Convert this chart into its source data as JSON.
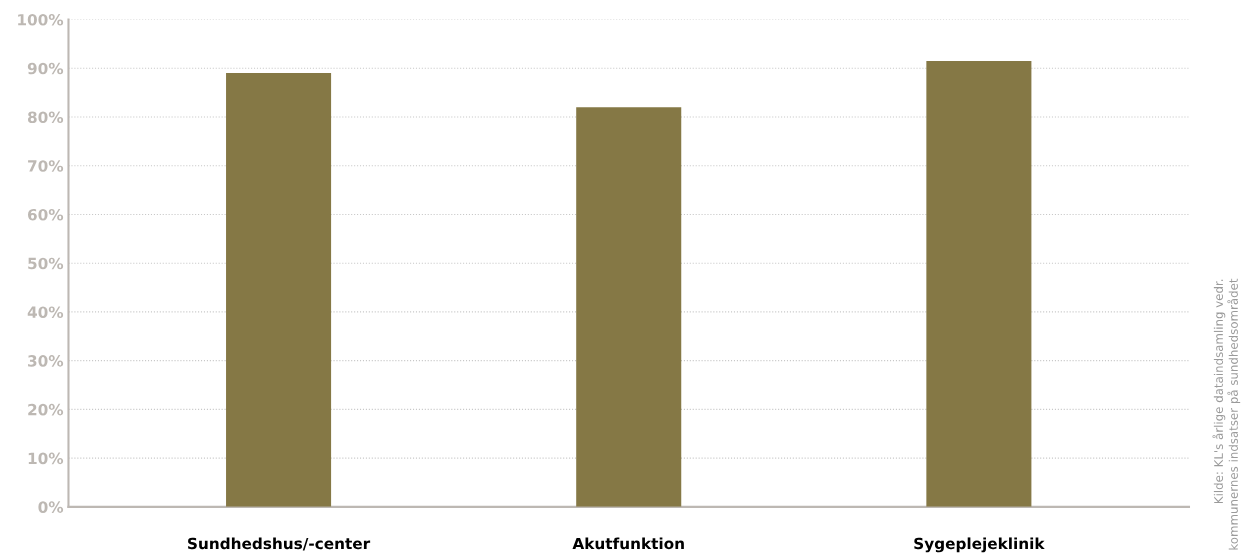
{
  "chart_data": {
    "type": "bar",
    "categories": [
      "Sundhedshus/-center",
      "Akutfunktion",
      "Sygeplejeklinik"
    ],
    "values": [
      89,
      82,
      91.5
    ],
    "color": "#857845",
    "ylim": [
      0,
      100
    ],
    "yticks": [
      {
        "value": 0,
        "label": "0%"
      },
      {
        "value": 10,
        "label": "10%"
      },
      {
        "value": 20,
        "label": "20%"
      },
      {
        "value": 30,
        "label": "30%"
      },
      {
        "value": 40,
        "label": "40%"
      },
      {
        "value": 50,
        "label": "50%"
      },
      {
        "value": 60,
        "label": "60%"
      },
      {
        "value": 70,
        "label": "70%"
      },
      {
        "value": 80,
        "label": "80%"
      },
      {
        "value": 90,
        "label": "90%"
      },
      {
        "value": 100,
        "label": "100%"
      }
    ],
    "grid": "y",
    "annotations": [
      "Kilde: KL's årlige dataindsamling vedr. kommunernes indsatser på sundhedsområdet"
    ]
  }
}
